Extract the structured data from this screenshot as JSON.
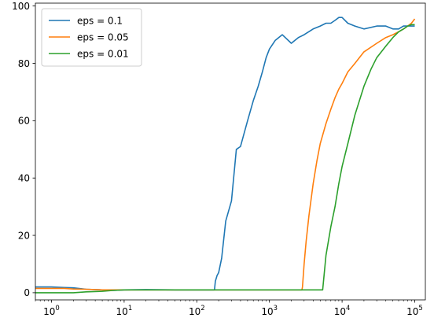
{
  "chart_data": {
    "type": "line",
    "title": "",
    "xlabel": "",
    "ylabel": "",
    "xscale": "log",
    "xlim": [
      0.6,
      140000
    ],
    "ylim": [
      -2.5,
      101
    ],
    "grid": false,
    "legend_position": "top-left",
    "x_ticks": [
      {
        "value": 1,
        "base": "10",
        "exp": "0"
      },
      {
        "value": 10,
        "base": "10",
        "exp": "1"
      },
      {
        "value": 100,
        "base": "10",
        "exp": "2"
      },
      {
        "value": 1000,
        "base": "10",
        "exp": "3"
      },
      {
        "value": 10000,
        "base": "10",
        "exp": "4"
      },
      {
        "value": 100000,
        "base": "10",
        "exp": "5"
      }
    ],
    "y_ticks": [
      {
        "value": 0,
        "label": "0"
      },
      {
        "value": 20,
        "label": "20"
      },
      {
        "value": 40,
        "label": "40"
      },
      {
        "value": 60,
        "label": "60"
      },
      {
        "value": 80,
        "label": "80"
      },
      {
        "value": 100,
        "label": "100"
      }
    ],
    "series": [
      {
        "name": "eps = 0.1",
        "color": "#1f77b4",
        "x": [
          0.6,
          1,
          1.5,
          2,
          3,
          5,
          7,
          10,
          20,
          50,
          100,
          150,
          175,
          180,
          190,
          200,
          220,
          250,
          300,
          350,
          400,
          500,
          600,
          700,
          800,
          900,
          1000,
          1200,
          1500,
          2000,
          2500,
          3000,
          4000,
          5000,
          6000,
          7000,
          8000,
          9000,
          10000,
          12000,
          15000,
          20000,
          30000,
          40000,
          50000,
          60000,
          70000,
          80000,
          90000,
          100000
        ],
        "y": [
          2,
          2,
          1.8,
          1.7,
          1.2,
          1,
          0.8,
          1,
          1.1,
          1,
          1,
          1,
          1,
          4,
          6,
          7,
          12,
          25,
          32,
          50,
          51,
          60,
          67,
          72,
          77,
          82,
          85,
          88,
          90,
          87,
          89,
          90,
          92,
          93,
          94,
          94,
          95,
          96,
          96,
          94,
          93,
          92,
          93,
          93,
          92,
          92,
          93,
          93,
          93,
          93
        ]
      },
      {
        "name": "eps = 0.05",
        "color": "#ff7f0e",
        "x": [
          0.6,
          1,
          1.5,
          2,
          3,
          5,
          7,
          10,
          20,
          50,
          100,
          300,
          1000,
          2000,
          2800,
          2850,
          3000,
          3200,
          3500,
          4000,
          4500,
          5000,
          6000,
          7000,
          8000,
          9000,
          10000,
          12000,
          15000,
          20000,
          30000,
          40000,
          50000,
          60000,
          70000,
          80000,
          90000,
          100000
        ],
        "y": [
          1.5,
          1.5,
          1.5,
          1.3,
          1.2,
          1,
          1,
          1,
          1,
          1,
          1,
          1,
          1,
          1,
          1,
          2,
          10,
          18,
          27,
          38,
          46,
          52,
          59,
          64,
          68,
          71,
          73,
          77,
          80,
          84,
          87,
          89,
          90,
          91,
          92,
          93,
          94,
          95.5
        ]
      },
      {
        "name": "eps = 0.01",
        "color": "#2ca02c",
        "x": [
          0.6,
          1,
          1.5,
          2,
          3,
          5,
          7,
          10,
          20,
          50,
          100,
          300,
          1000,
          3000,
          5000,
          5400,
          5500,
          5700,
          6000,
          7000,
          8000,
          9000,
          10000,
          12000,
          15000,
          20000,
          25000,
          30000,
          40000,
          50000,
          60000,
          70000,
          80000,
          90000,
          100000
        ],
        "y": [
          0,
          0,
          0,
          0,
          0.3,
          0.5,
          0.8,
          1,
          1,
          1,
          1,
          1,
          1,
          1,
          1,
          1,
          3,
          7,
          13,
          23,
          30,
          38,
          44,
          52,
          62,
          72,
          78,
          82,
          86,
          89,
          91,
          92,
          93,
          93.5,
          93.5
        ]
      }
    ]
  }
}
